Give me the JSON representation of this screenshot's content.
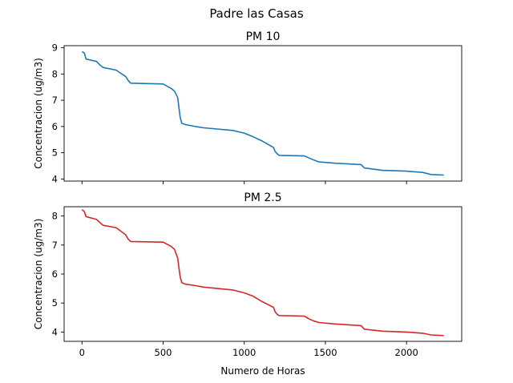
{
  "figure": {
    "suptitle": "Padre las Casas"
  },
  "chart_data": [
    {
      "type": "line",
      "title": "PM 10",
      "xlabel": "",
      "ylabel": "Concentracion (ug/m3)",
      "xlim": [
        -110,
        2340
      ],
      "ylim": [
        3.92,
        9.08
      ],
      "xticks": [
        0,
        500,
        1000,
        1500,
        2000
      ],
      "xtick_labels_visible": false,
      "yticks": [
        4,
        5,
        6,
        7,
        8,
        9
      ],
      "series": [
        {
          "color": "#1f77b4",
          "x": [
            0,
            15,
            25,
            90,
            110,
            130,
            210,
            270,
            285,
            300,
            500,
            550,
            570,
            590,
            598,
            605,
            615,
            640,
            700,
            750,
            930,
            1000,
            1050,
            1110,
            1180,
            1190,
            1205,
            1215,
            1370,
            1400,
            1430,
            1460,
            1560,
            1720,
            1740,
            1850,
            2000,
            2100,
            2150,
            2230
          ],
          "y": [
            8.85,
            8.8,
            8.57,
            8.48,
            8.35,
            8.25,
            8.15,
            7.9,
            7.75,
            7.65,
            7.62,
            7.45,
            7.35,
            7.1,
            6.7,
            6.35,
            6.12,
            6.07,
            6.0,
            5.95,
            5.85,
            5.75,
            5.62,
            5.45,
            5.2,
            5.05,
            4.95,
            4.9,
            4.88,
            4.8,
            4.72,
            4.65,
            4.6,
            4.55,
            4.42,
            4.33,
            4.3,
            4.25,
            4.17,
            4.15
          ]
        }
      ]
    },
    {
      "type": "line",
      "title": "PM 2.5",
      "xlabel": "Numero de Horas",
      "ylabel": "Concentracion (ug/m3)",
      "xlim": [
        -110,
        2340
      ],
      "ylim": [
        3.68,
        8.32
      ],
      "xticks": [
        0,
        500,
        1000,
        1500,
        2000
      ],
      "xtick_labels_visible": true,
      "yticks": [
        4,
        5,
        6,
        7,
        8
      ],
      "series": [
        {
          "color": "#d62728",
          "x": [
            0,
            15,
            25,
            90,
            110,
            130,
            210,
            270,
            285,
            300,
            500,
            550,
            570,
            590,
            598,
            605,
            615,
            640,
            700,
            750,
            930,
            1000,
            1050,
            1110,
            1180,
            1190,
            1205,
            1215,
            1370,
            1400,
            1430,
            1460,
            1560,
            1720,
            1740,
            1850,
            2000,
            2100,
            2150,
            2230
          ],
          "y": [
            8.22,
            8.15,
            7.98,
            7.88,
            7.78,
            7.68,
            7.6,
            7.35,
            7.2,
            7.12,
            7.1,
            6.95,
            6.85,
            6.55,
            6.2,
            5.9,
            5.7,
            5.65,
            5.6,
            5.55,
            5.45,
            5.35,
            5.25,
            5.05,
            4.85,
            4.7,
            4.6,
            4.57,
            4.55,
            4.45,
            4.38,
            4.33,
            4.28,
            4.22,
            4.1,
            4.03,
            4.0,
            3.96,
            3.9,
            3.88
          ]
        }
      ]
    }
  ]
}
